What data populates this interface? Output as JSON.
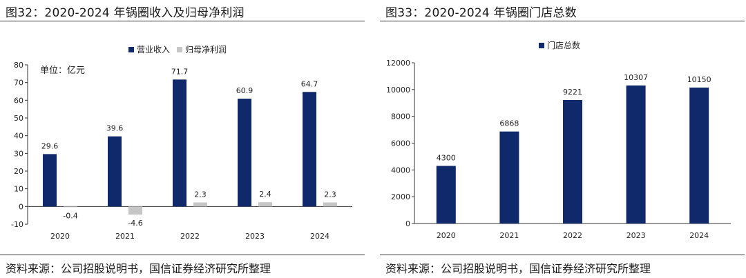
{
  "left": {
    "title": "图32：2020-2024 年锅圈收入及归母净利润",
    "source": "资料来源：公司招股说明书，国信证券经济研究所整理",
    "unit_label": "单位：亿元",
    "chart_data": {
      "type": "bar",
      "categories": [
        "2020",
        "2021",
        "2022",
        "2023",
        "2024"
      ],
      "series": [
        {
          "name": "营业收入",
          "color": "#10296b",
          "values": [
            29.6,
            39.6,
            71.7,
            60.9,
            64.7
          ],
          "labels": [
            "29.6",
            "39.6",
            "71.7",
            "60.9",
            "64.7"
          ]
        },
        {
          "name": "归母净利润",
          "color": "#c6c6c6",
          "values": [
            -0.4,
            -4.6,
            2.3,
            2.4,
            2.3
          ],
          "labels": [
            "-0.4",
            "-4.6",
            "2.3",
            "2.4",
            "2.3"
          ]
        }
      ],
      "ylim": [
        -10,
        80
      ],
      "yticks": [
        "80",
        "70",
        "60",
        "50",
        "40",
        "30",
        "20",
        "10",
        "0",
        "-10"
      ],
      "legend_position": "top-center",
      "grid": false
    }
  },
  "right": {
    "title": "图33：2020-2024 年锅圈门店总数",
    "source": "资料来源：公司招股说明书，国信证券经济研究所整理",
    "chart_data": {
      "type": "bar",
      "categories": [
        "2020",
        "2021",
        "2022",
        "2023",
        "2024"
      ],
      "series": [
        {
          "name": "门店总数",
          "color": "#10296b",
          "values": [
            4300,
            6868,
            9221,
            10307,
            10150
          ],
          "labels": [
            "4300",
            "6868",
            "9221",
            "10307",
            "10150"
          ]
        }
      ],
      "ylim": [
        0,
        12000
      ],
      "yticks": [
        "12000",
        "10000",
        "8000",
        "6000",
        "4000",
        "2000",
        "0"
      ],
      "legend_position": "top-center",
      "grid": false
    }
  }
}
